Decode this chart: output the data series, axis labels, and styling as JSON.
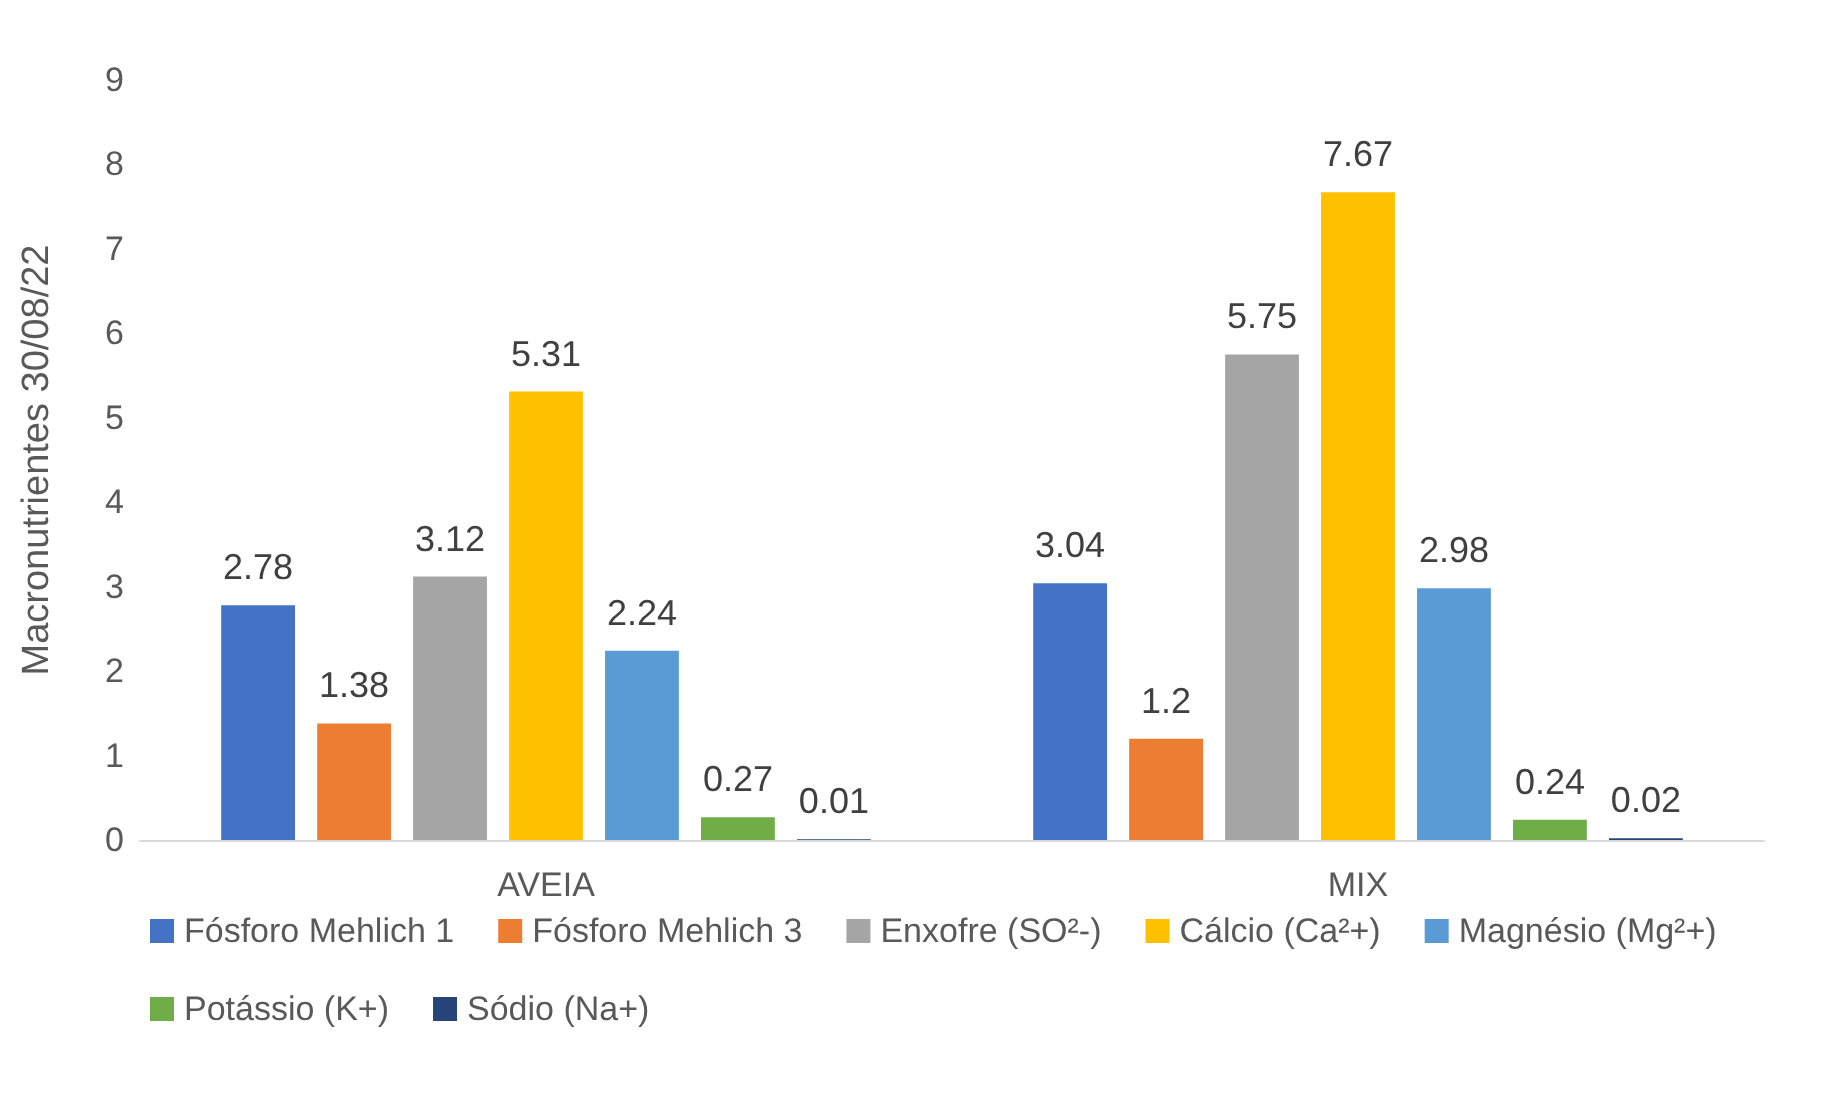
{
  "chart_data": {
    "type": "bar",
    "ylabel": "Macronutrientes 30/08/22",
    "categories": [
      "AVEIA",
      "MIX"
    ],
    "series": [
      {
        "name": "Fósforo Mehlich 1",
        "color": "#4472c4",
        "values": [
          2.78,
          3.04
        ]
      },
      {
        "name": "Fósforo Mehlich 3",
        "color": "#ed7d31",
        "values": [
          1.38,
          1.2
        ]
      },
      {
        "name": "Enxofre (SO²-)",
        "color": "#a5a5a5",
        "values": [
          3.12,
          5.75
        ]
      },
      {
        "name": "Cálcio (Ca²+)",
        "color": "#ffc000",
        "values": [
          5.31,
          7.67
        ]
      },
      {
        "name": "Magnésio (Mg²+)",
        "color": "#5b9bd5",
        "values": [
          2.24,
          2.98
        ]
      },
      {
        "name": "Potássio (K+)",
        "color": "#70ad47",
        "values": [
          0.27,
          0.24
        ]
      },
      {
        "name": "Sódio (Na+)",
        "color": "#264478",
        "values": [
          0.01,
          0.02
        ]
      }
    ],
    "ylim": [
      0,
      9
    ],
    "yticks": [
      0,
      1,
      2,
      3,
      4,
      5,
      6,
      7,
      8,
      9
    ],
    "grid": false,
    "data_labels": true,
    "legend": "bottom"
  }
}
